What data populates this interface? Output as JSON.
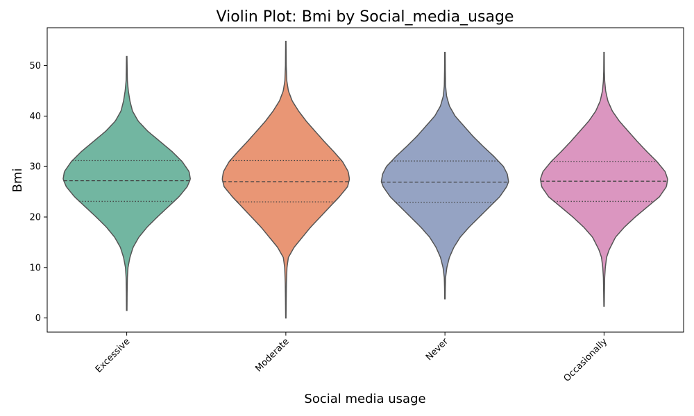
{
  "chart_data": {
    "type": "violin",
    "title": "Violin Plot: Bmi by Social_media_usage",
    "xlabel": "Social media usage",
    "ylabel": "Bmi",
    "ylim": [
      -2.8,
      57.5
    ],
    "yticks": [
      0,
      10,
      20,
      30,
      40,
      50
    ],
    "grid": false,
    "inner": "quartile",
    "categories": [
      "Excessive",
      "Moderate",
      "Never",
      "Occasionally"
    ],
    "colors": [
      "#72b6a1",
      "#e99675",
      "#95a3c3",
      "#db96c0"
    ],
    "edge_color": "#555555",
    "groups": [
      {
        "category": "Excessive",
        "min": 1.5,
        "max": 51.8,
        "q1": 23.1,
        "median": 27.2,
        "q3": 31.2,
        "profile": [
          [
            1.5,
            0.004
          ],
          [
            5,
            0.006
          ],
          [
            8,
            0.01
          ],
          [
            10,
            0.02
          ],
          [
            12,
            0.05
          ],
          [
            14,
            0.1
          ],
          [
            16,
            0.19
          ],
          [
            18,
            0.32
          ],
          [
            20,
            0.48
          ],
          [
            22,
            0.65
          ],
          [
            24,
            0.82
          ],
          [
            26,
            0.95
          ],
          [
            27.5,
            1.0
          ],
          [
            29,
            0.98
          ],
          [
            31,
            0.87
          ],
          [
            33,
            0.71
          ],
          [
            35,
            0.52
          ],
          [
            37,
            0.33
          ],
          [
            39,
            0.18
          ],
          [
            41,
            0.09
          ],
          [
            43,
            0.05
          ],
          [
            45,
            0.025
          ],
          [
            47,
            0.01
          ],
          [
            49,
            0.007
          ],
          [
            51.8,
            0.004
          ]
        ]
      },
      {
        "category": "Moderate",
        "min": 0.0,
        "max": 54.8,
        "q1": 23.0,
        "median": 27.0,
        "q3": 31.2,
        "profile": [
          [
            0,
            0.003
          ],
          [
            4,
            0.006
          ],
          [
            7,
            0.009
          ],
          [
            10,
            0.018
          ],
          [
            12,
            0.04
          ],
          [
            14,
            0.13
          ],
          [
            16,
            0.26
          ],
          [
            18,
            0.39
          ],
          [
            20,
            0.54
          ],
          [
            22,
            0.69
          ],
          [
            24,
            0.84
          ],
          [
            26,
            0.97
          ],
          [
            27.5,
            1.0
          ],
          [
            29,
            0.98
          ],
          [
            31,
            0.89
          ],
          [
            33,
            0.75
          ],
          [
            35,
            0.6
          ],
          [
            37,
            0.46
          ],
          [
            39,
            0.32
          ],
          [
            41,
            0.2
          ],
          [
            43,
            0.1
          ],
          [
            45,
            0.04
          ],
          [
            47,
            0.015
          ],
          [
            50,
            0.006
          ],
          [
            54.8,
            0.003
          ]
        ]
      },
      {
        "category": "Never",
        "min": 3.8,
        "max": 52.6,
        "q1": 22.9,
        "median": 26.9,
        "q3": 31.1,
        "profile": [
          [
            3.8,
            0.004
          ],
          [
            6,
            0.006
          ],
          [
            8,
            0.01
          ],
          [
            10,
            0.03
          ],
          [
            12,
            0.07
          ],
          [
            14,
            0.14
          ],
          [
            16,
            0.24
          ],
          [
            18,
            0.38
          ],
          [
            20,
            0.54
          ],
          [
            22,
            0.7
          ],
          [
            24,
            0.86
          ],
          [
            26,
            0.97
          ],
          [
            27,
            1.0
          ],
          [
            28.5,
            0.98
          ],
          [
            30,
            0.92
          ],
          [
            32,
            0.77
          ],
          [
            34,
            0.6
          ],
          [
            36,
            0.44
          ],
          [
            38,
            0.3
          ],
          [
            40,
            0.16
          ],
          [
            42,
            0.07
          ],
          [
            44,
            0.025
          ],
          [
            46,
            0.01
          ],
          [
            49,
            0.006
          ],
          [
            52.6,
            0.004
          ]
        ]
      },
      {
        "category": "Occasionally",
        "min": 2.3,
        "max": 52.6,
        "q1": 23.1,
        "median": 27.1,
        "q3": 31.0,
        "profile": [
          [
            2.3,
            0.003
          ],
          [
            5,
            0.006
          ],
          [
            8,
            0.01
          ],
          [
            10,
            0.02
          ],
          [
            12,
            0.04
          ],
          [
            13.5,
            0.08
          ],
          [
            16,
            0.18
          ],
          [
            18,
            0.32
          ],
          [
            20,
            0.49
          ],
          [
            22,
            0.68
          ],
          [
            24,
            0.87
          ],
          [
            26,
            0.98
          ],
          [
            27.5,
            1.0
          ],
          [
            29,
            0.96
          ],
          [
            31,
            0.83
          ],
          [
            33,
            0.67
          ],
          [
            35,
            0.52
          ],
          [
            37,
            0.38
          ],
          [
            39,
            0.24
          ],
          [
            41,
            0.13
          ],
          [
            43,
            0.06
          ],
          [
            45,
            0.025
          ],
          [
            47,
            0.01
          ],
          [
            49,
            0.005
          ],
          [
            52.6,
            0.003
          ]
        ]
      }
    ]
  }
}
